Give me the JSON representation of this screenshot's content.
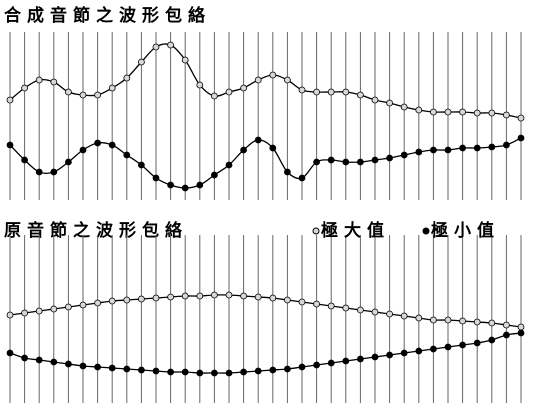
{
  "chart_data": [
    {
      "type": "line",
      "title": "合成音節之波形包絡",
      "ylim": [
        0,
        160
      ],
      "grid": true,
      "series": [
        {
          "color": "#000000",
          "marker": "open",
          "values": [
            100,
            112,
            120,
            118,
            108,
            105,
            105,
            112,
            122,
            138,
            153,
            155,
            140,
            115,
            104,
            108,
            112,
            120,
            125,
            120,
            110,
            108,
            108,
            108,
            105,
            100,
            97,
            93,
            90,
            88,
            88,
            88,
            87,
            87,
            85,
            82
          ]
        },
        {
          "color": "#000000",
          "marker": "filled",
          "values": [
            55,
            40,
            28,
            28,
            38,
            50,
            57,
            55,
            45,
            35,
            22,
            15,
            12,
            15,
            25,
            35,
            50,
            60,
            52,
            28,
            22,
            38,
            40,
            38,
            38,
            40,
            42,
            45,
            48,
            50,
            50,
            52,
            52,
            53,
            55,
            62
          ]
        }
      ]
    },
    {
      "type": "line",
      "title": "原音節之波形包絡",
      "ylim": [
        0,
        160
      ],
      "grid": true,
      "legend": "top-right",
      "series": [
        {
          "name": "極大值",
          "color": "#000000",
          "marker": "open",
          "values": [
            88,
            90,
            92,
            94,
            96,
            98,
            100,
            102,
            103,
            104,
            105,
            106,
            107,
            107,
            108,
            108,
            107,
            106,
            105,
            103,
            101,
            99,
            97,
            95,
            93,
            91,
            89,
            87,
            85,
            83,
            83,
            82,
            81,
            80,
            78,
            76
          ]
        },
        {
          "name": "極小值",
          "color": "#000000",
          "marker": "filled",
          "values": [
            50,
            45,
            43,
            41,
            39,
            37,
            36,
            35,
            34,
            33,
            32,
            31,
            31,
            30,
            30,
            30,
            31,
            32,
            33,
            34,
            36,
            38,
            40,
            42,
            44,
            46,
            48,
            50,
            52,
            54,
            56,
            58,
            60,
            63,
            68,
            70
          ]
        }
      ]
    }
  ]
}
